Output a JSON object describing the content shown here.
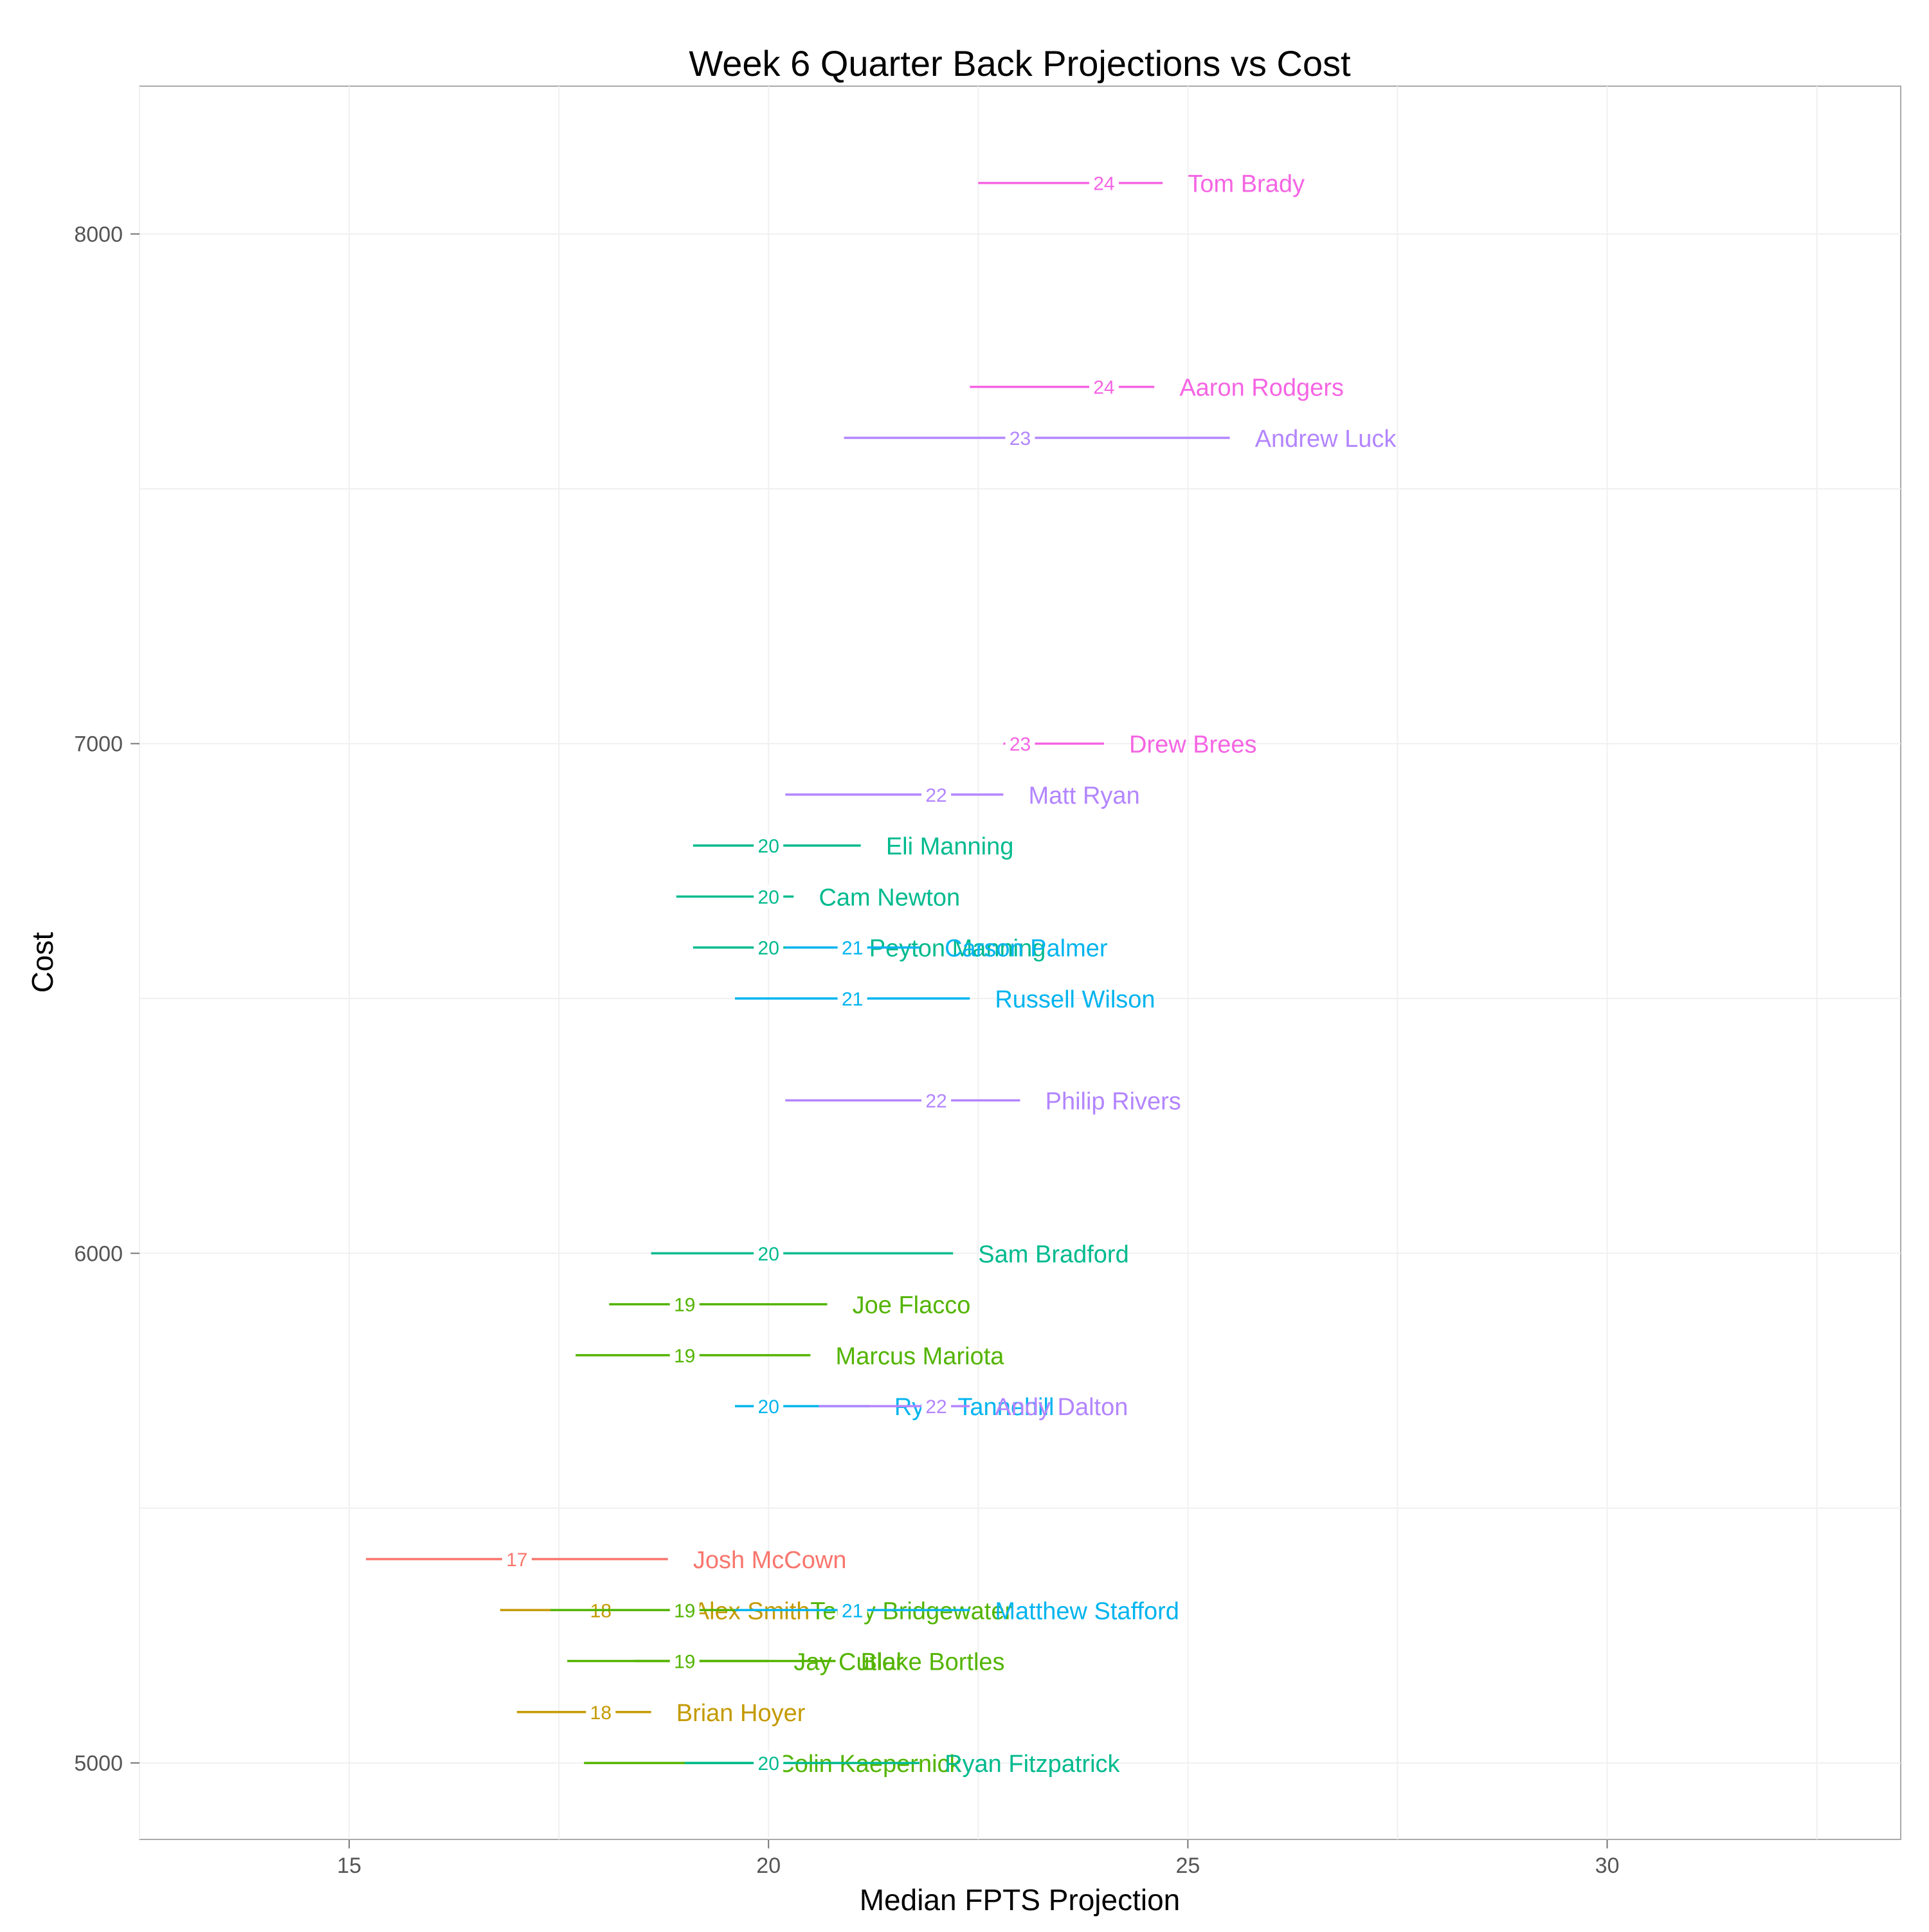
{
  "chart_data": {
    "type": "scatter",
    "title": "Week 6 Quarter Back Projections vs Cost",
    "xlabel": "Median FPTS Projection",
    "ylabel": "Cost",
    "xlim": [
      12.5,
      33.5
    ],
    "ylim": [
      4850,
      8290
    ],
    "x_ticks": [
      "15",
      "20",
      "25",
      "30"
    ],
    "y_ticks": [
      "5000",
      "6000",
      "7000",
      "8000"
    ],
    "grid": true,
    "legend": "none",
    "players": [
      {
        "name": "Tom Brady",
        "cost": 8100,
        "low": 22.5,
        "high": 24.7,
        "median": 24,
        "median_label": "24",
        "color": "#F564E3"
      },
      {
        "name": "Aaron Rodgers",
        "cost": 7700,
        "low": 22.4,
        "high": 24.6,
        "median": 24,
        "median_label": "24",
        "color": "#F564E3"
      },
      {
        "name": "Andrew Luck",
        "cost": 7600,
        "low": 20.9,
        "high": 25.5,
        "median": 23,
        "median_label": "23",
        "color": "#B385FF"
      },
      {
        "name": "Drew Brees",
        "cost": 7000,
        "low": 22.8,
        "high": 24.0,
        "median": 23,
        "median_label": "23",
        "color": "#F564E3"
      },
      {
        "name": "Matt Ryan",
        "cost": 6900,
        "low": 20.2,
        "high": 22.8,
        "median": 22,
        "median_label": "22",
        "color": "#B385FF"
      },
      {
        "name": "Eli Manning",
        "cost": 6800,
        "low": 19.1,
        "high": 21.1,
        "median": 20,
        "median_label": "20",
        "color": "#00BA8E"
      },
      {
        "name": "Cam Newton",
        "cost": 6700,
        "low": 18.9,
        "high": 20.3,
        "median": 20,
        "median_label": "20",
        "color": "#00BA8E"
      },
      {
        "name": "Peyton Manning",
        "cost": 6600,
        "low": 19.1,
        "high": 20.9,
        "median": 20,
        "median_label": "20",
        "color": "#00BA8E"
      },
      {
        "name": "Carson Palmer",
        "cost": 6600,
        "low": 20.2,
        "high": 21.8,
        "median": 21,
        "median_label": "21",
        "color": "#00B4EF"
      },
      {
        "name": "Russell Wilson",
        "cost": 6500,
        "low": 19.6,
        "high": 22.4,
        "median": 21,
        "median_label": "21",
        "color": "#00B4EF"
      },
      {
        "name": "Philip Rivers",
        "cost": 6300,
        "low": 20.2,
        "high": 23.0,
        "median": 22,
        "median_label": "22",
        "color": "#B385FF"
      },
      {
        "name": "Sam Bradford",
        "cost": 6000,
        "low": 18.6,
        "high": 22.2,
        "median": 20,
        "median_label": "20",
        "color": "#00BA8E"
      },
      {
        "name": "Joe Flacco",
        "cost": 5900,
        "low": 18.1,
        "high": 20.7,
        "median": 19,
        "median_label": "19",
        "color": "#53B400"
      },
      {
        "name": "Marcus Mariota",
        "cost": 5800,
        "low": 17.7,
        "high": 20.5,
        "median": 19,
        "median_label": "19",
        "color": "#53B400"
      },
      {
        "name": "Ryan Tannehill",
        "cost": 5700,
        "low": 19.6,
        "high": 21.2,
        "median": 20,
        "median_label": "20",
        "color": "#00B4EF"
      },
      {
        "name": "Andy Dalton",
        "cost": 5700,
        "low": 20.6,
        "high": 22.4,
        "median": 22,
        "median_label": "22",
        "color": "#B385FF"
      },
      {
        "name": "Josh McCown",
        "cost": 5400,
        "low": 15.2,
        "high": 18.8,
        "median": 17,
        "median_label": "17",
        "color": "#F8766D"
      },
      {
        "name": "Alex Smith",
        "cost": 5300,
        "low": 16.8,
        "high": 18.8,
        "median": 18,
        "median_label": "18",
        "color": "#C49A00"
      },
      {
        "name": "Teddy Bridgewater",
        "cost": 5300,
        "low": 17.4,
        "high": 20.2,
        "median": 19,
        "median_label": "19",
        "color": "#53B400"
      },
      {
        "name": "Matthew Stafford",
        "cost": 5300,
        "low": 19.6,
        "high": 22.4,
        "median": 21,
        "median_label": "21",
        "color": "#00B4EF"
      },
      {
        "name": "Jay Cutler",
        "cost": 5200,
        "low": 17.6,
        "high": 20.0,
        "median": 19,
        "median_label": "19",
        "color": "#53B400"
      },
      {
        "name": "Blake Bortles",
        "cost": 5200,
        "low": 18.4,
        "high": 20.8,
        "median": 19,
        "median_label": "19",
        "color": "#53B400"
      },
      {
        "name": "Brian Hoyer",
        "cost": 5100,
        "low": 17.0,
        "high": 18.6,
        "median": 18,
        "median_label": "18",
        "color": "#C49A00"
      },
      {
        "name": "Colin Kaepernick",
        "cost": 5000,
        "low": 17.8,
        "high": 19.8,
        "median": 20,
        "median_label": "20",
        "color": "#53B400"
      },
      {
        "name": "Ryan Fitzpatrick",
        "cost": 5000,
        "low": 19.0,
        "high": 21.8,
        "median": 20,
        "median_label": "20",
        "color": "#00BA8E"
      }
    ]
  }
}
